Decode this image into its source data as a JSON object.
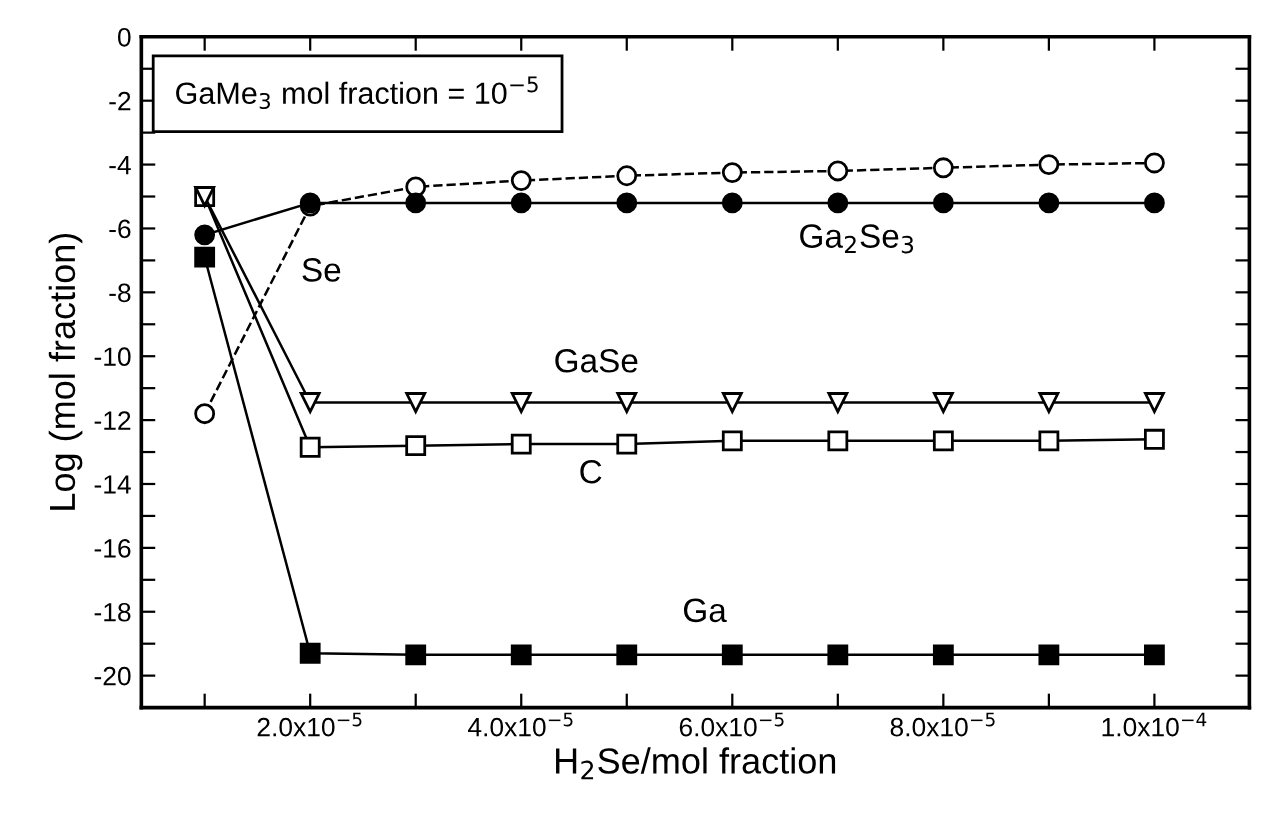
{
  "chart_data": {
    "type": "line",
    "xlabel": "H$_{2}$Se/mol fraction",
    "ylabel": "Log (mol fraction)",
    "x": [
      1e-05,
      2e-05,
      3e-05,
      4e-05,
      5e-05,
      6e-05,
      7e-05,
      8e-05,
      9e-05,
      0.0001
    ],
    "series": [
      {
        "name": "Se",
        "color": "#000000",
        "marker": "circle",
        "line_style": "dashed",
        "values": [
          -11.8,
          -5.3,
          -4.7,
          -4.5,
          -4.35,
          -4.25,
          -4.2,
          -4.1,
          -4.0,
          -3.95
        ]
      },
      {
        "name": "Ga$_{2}$Se$_{3}$",
        "color": "#000000",
        "marker": "circle",
        "line_style": "solid",
        "values": [
          -6.2,
          -5.2,
          -5.2,
          -5.2,
          -5.2,
          -5.2,
          -5.2,
          -5.2,
          -5.2,
          -5.2
        ]
      },
      {
        "name": "C",
        "color": "#000000",
        "marker": "square",
        "line_style": "solid",
        "values": [
          -5.0,
          -12.85,
          -12.8,
          -12.75,
          -12.75,
          -12.65,
          -12.65,
          -12.65,
          -12.65,
          -12.6
        ]
      },
      {
        "name": "GaSe",
        "color": "#000000",
        "marker": "triangle",
        "line_style": "solid",
        "values": [
          -5.0,
          -11.45,
          -11.45,
          -11.45,
          -11.45,
          -11.45,
          -11.45,
          -11.45,
          -11.45,
          -11.45
        ]
      },
      {
        "name": "Ga",
        "color": "#000000",
        "marker": "square",
        "line_style": "solid",
        "values": [
          -6.9,
          -19.3,
          -19.35,
          -19.35,
          -19.35,
          -19.35,
          -19.35,
          -19.35,
          -19.35,
          -19.35
        ]
      }
    ],
    "annotations": [
      "GaMe$_{3}$ mol fraction = 10$^{−5}$"
    ],
    "xlim": [
      4e-06,
      0.000109
    ],
    "xticks": [
      {
        "value": 1e-05,
        "label": null
      },
      {
        "value": 2e-05,
        "label": "2.0x10$^{−5}$"
      },
      {
        "value": 3e-05,
        "label": null
      },
      {
        "value": 4e-05,
        "label": "4.0x10$^{−5}$"
      },
      {
        "value": 5e-05,
        "label": null
      },
      {
        "value": 6e-05,
        "label": "6.0x10$^{−5}$"
      },
      {
        "value": 7e-05,
        "label": null
      },
      {
        "value": 8e-05,
        "label": "8.0x10$^{−5}$"
      },
      {
        "value": 9e-05,
        "label": null
      },
      {
        "value": 0.0001,
        "label": "1.0x10$^{−4}$"
      }
    ],
    "ylim": [
      -21,
      0
    ],
    "yticks": [
      0,
      {
        "value": -1,
        "label": null
      },
      -2,
      {
        "value": -3,
        "label": null
      },
      -4,
      {
        "value": -5,
        "label": null
      },
      -6,
      {
        "value": -7,
        "label": null
      },
      -8,
      {
        "value": -9,
        "label": null
      },
      -10,
      {
        "value": -11,
        "label": null
      },
      -12,
      {
        "value": -13,
        "label": null
      },
      -14,
      {
        "value": -15,
        "label": null
      },
      -16,
      {
        "value": -17,
        "label": null
      },
      -18,
      {
        "value": -19,
        "label": null
      },
      -20,
      {
        "value": -21,
        "label": null
      }
    ],
    "grid": false,
    "legend": false
  }
}
